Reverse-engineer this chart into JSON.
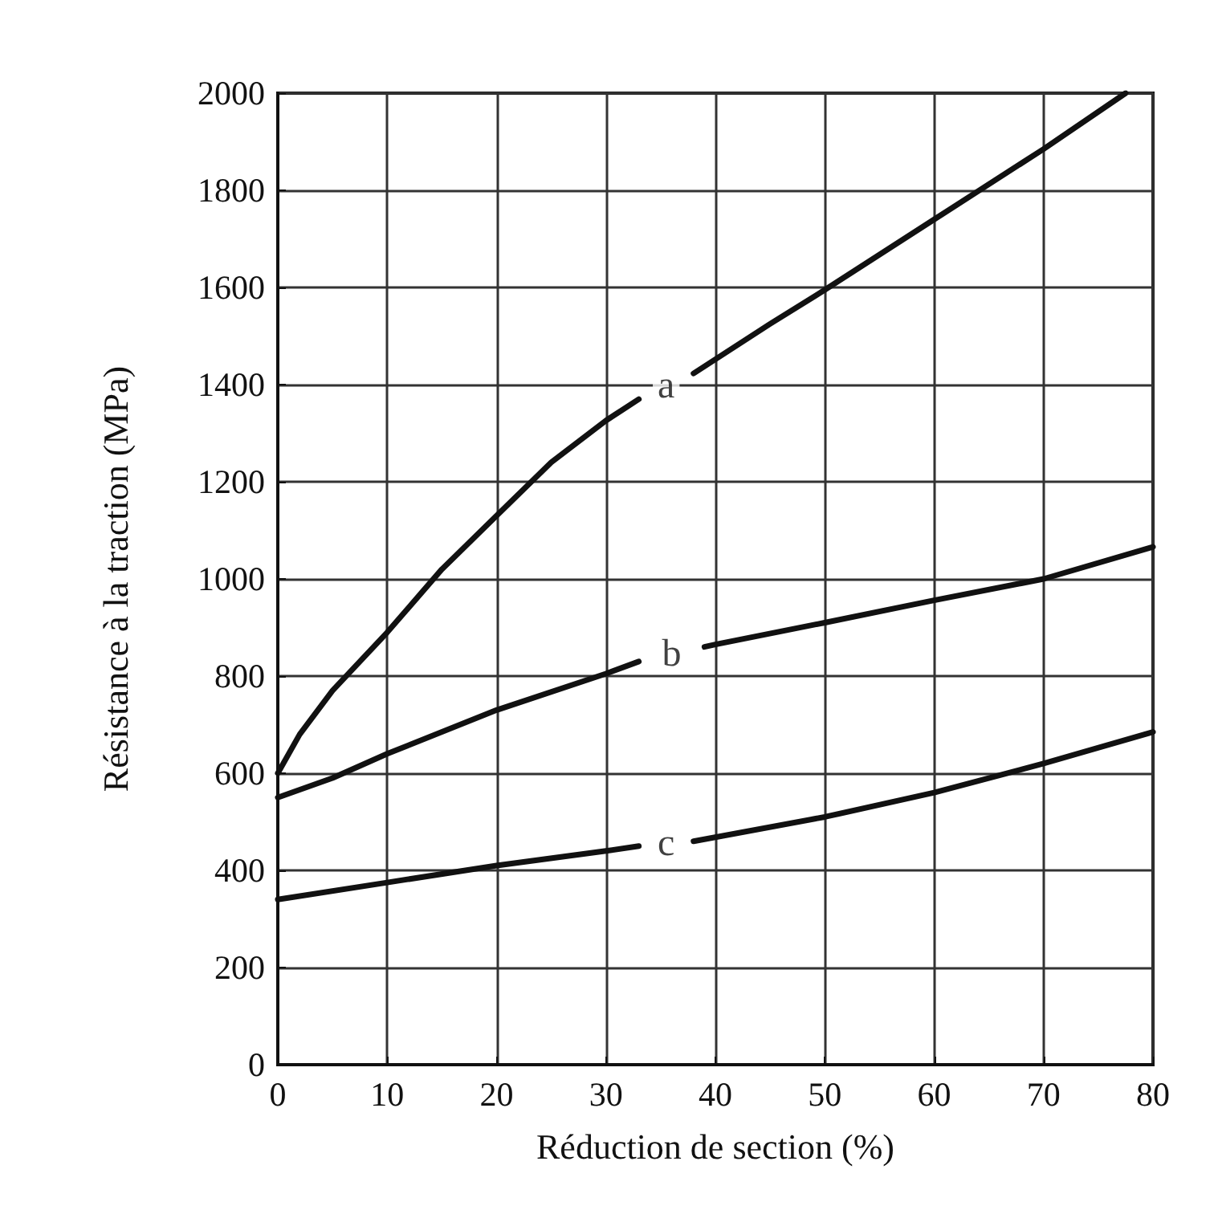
{
  "chart_data": {
    "type": "line",
    "xlabel": "Réduction de section (%)",
    "ylabel": "Résistance à la traction (MPa)",
    "xlim": [
      0,
      80
    ],
    "xticks": [
      0,
      10,
      20,
      30,
      40,
      50,
      60,
      70,
      80
    ],
    "ylim": [
      0,
      2000
    ],
    "yticks": [
      0,
      200,
      400,
      600,
      800,
      1000,
      1200,
      1400,
      1600,
      1800,
      2000
    ],
    "grid": true,
    "line_style": "solid",
    "marker": "none",
    "series": [
      {
        "name": "a",
        "color": "#111111",
        "x": [
          0,
          2,
          5,
          10,
          15,
          20,
          25,
          30,
          33,
          35.5,
          38,
          45,
          50,
          60,
          70,
          77.5
        ],
        "values": [
          600,
          680,
          770,
          890,
          1020,
          1130,
          1240,
          1326,
          1370,
          null,
          1423,
          1525,
          1595,
          1740,
          1885,
          2000
        ]
      },
      {
        "name": "b",
        "color": "#111111",
        "x": [
          0,
          5,
          10,
          20,
          30,
          33,
          36,
          39,
          40,
          50,
          60,
          70,
          80
        ],
        "values": [
          550,
          590,
          640,
          730,
          805,
          830,
          null,
          860,
          865,
          910,
          956,
          1000,
          1066
        ]
      },
      {
        "name": "c",
        "color": "#111111",
        "x": [
          0,
          10,
          20,
          30,
          33,
          35.5,
          38,
          50,
          60,
          70,
          80
        ],
        "values": [
          340,
          375,
          410,
          440,
          450,
          null,
          460,
          510,
          560,
          620,
          685
        ]
      }
    ]
  }
}
